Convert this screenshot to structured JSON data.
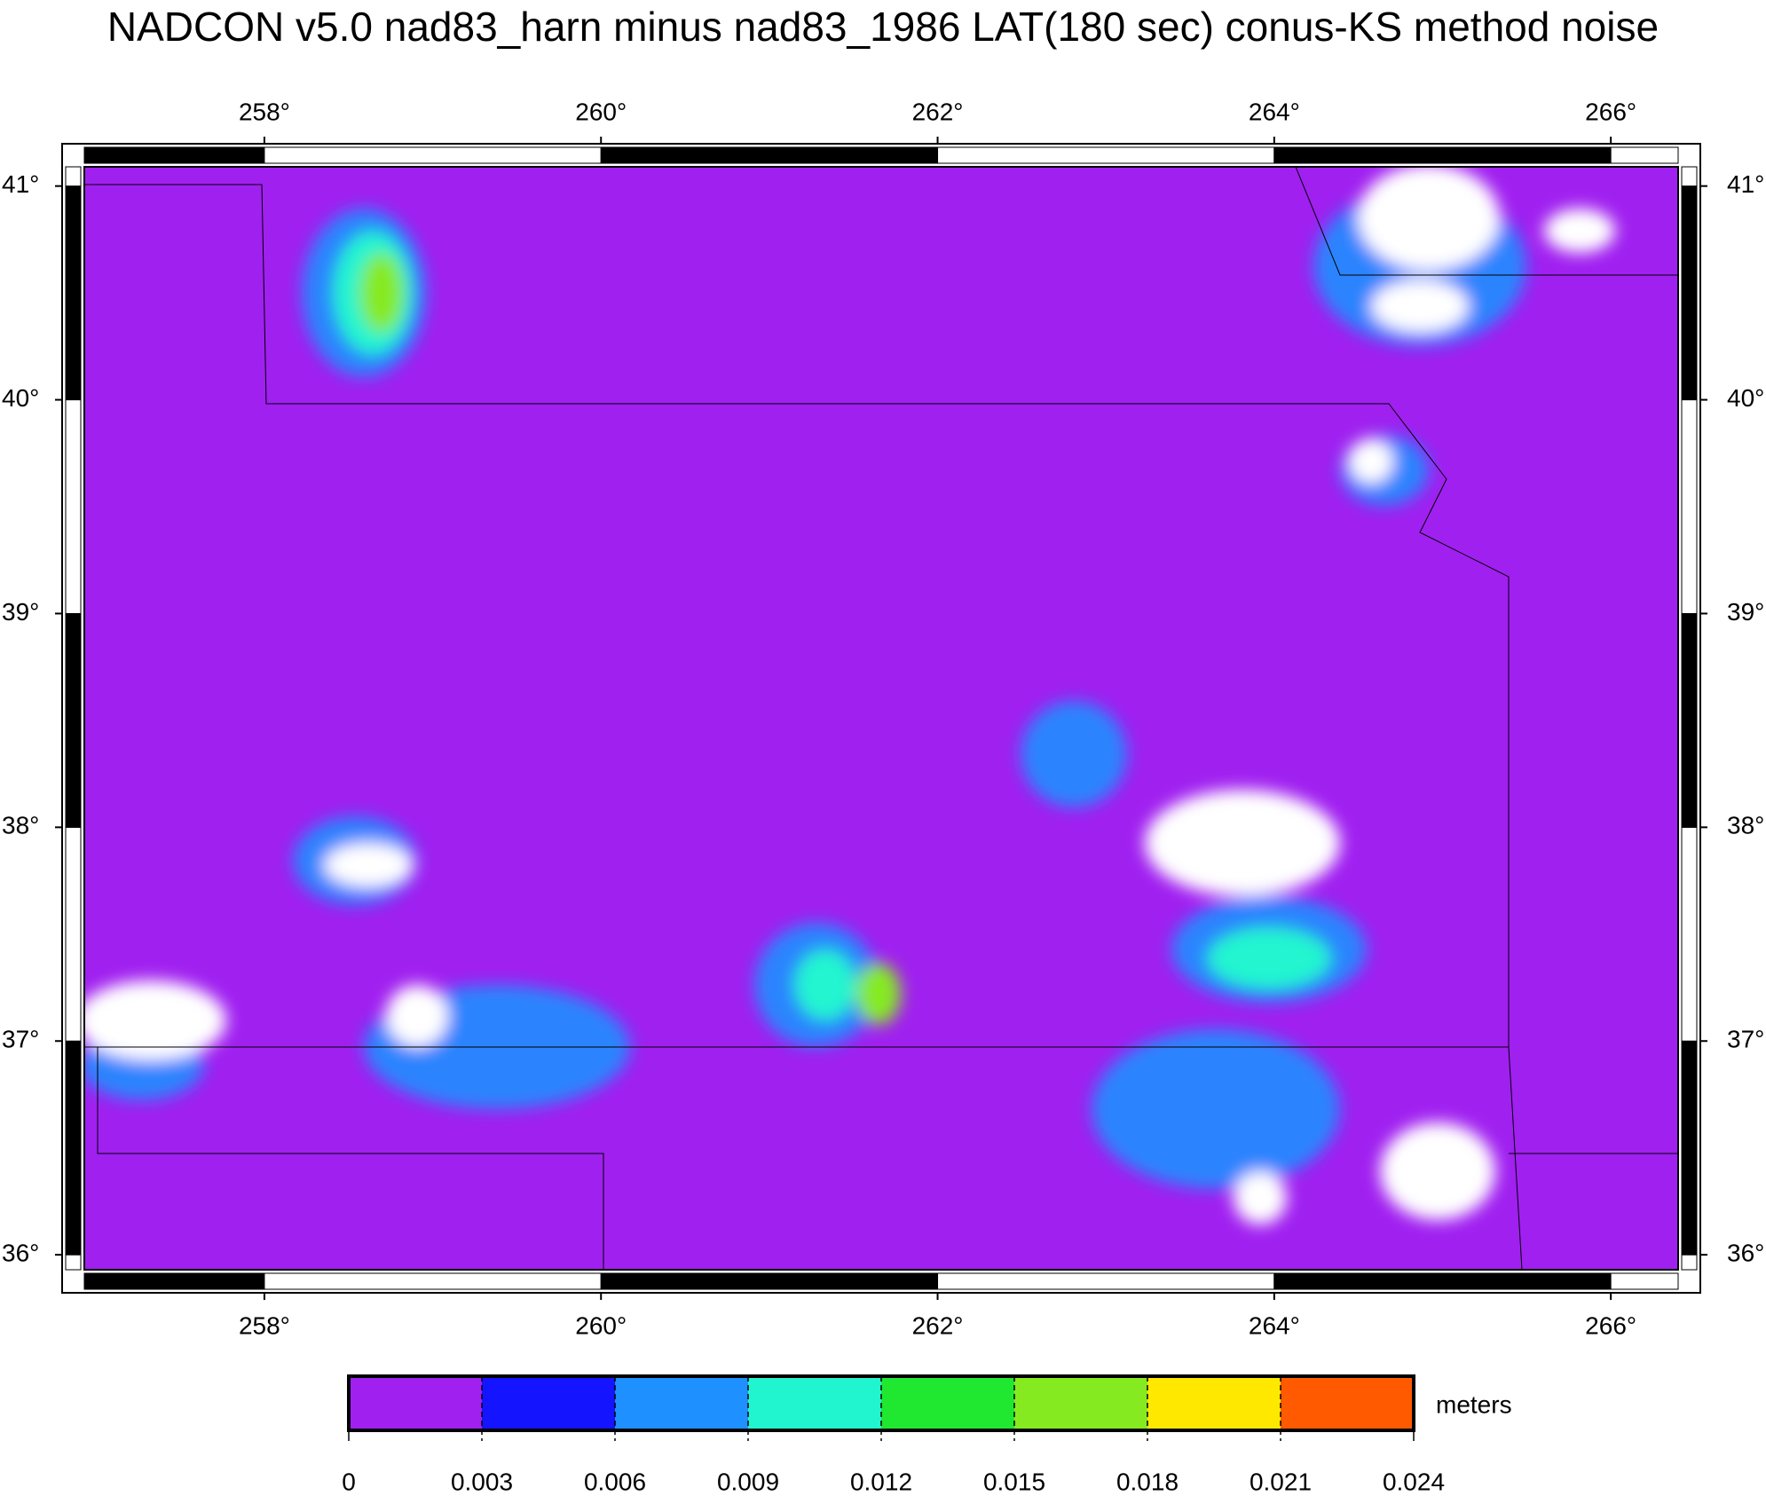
{
  "chart_data": {
    "type": "map",
    "title": "NADCON v5.0 nad83_harn minus nad83_1986 LAT(180 sec) conus-KS method noise",
    "xlim": [
      256.93,
      266.4
    ],
    "ylim": [
      35.93,
      41.09
    ],
    "xticks": [
      {
        "value": 258,
        "label": "258°"
      },
      {
        "value": 260,
        "label": "260°"
      },
      {
        "value": 262,
        "label": "262°"
      },
      {
        "value": 264,
        "label": "264°"
      },
      {
        "value": 266,
        "label": "266°"
      }
    ],
    "yticks": [
      {
        "value": 36,
        "label": "36°"
      },
      {
        "value": 37,
        "label": "37°"
      },
      {
        "value": 38,
        "label": "38°"
      },
      {
        "value": 39,
        "label": "39°"
      },
      {
        "value": 40,
        "label": "40°"
      },
      {
        "value": 41,
        "label": "41°"
      }
    ],
    "background_color": "#a020f0",
    "colorbar": {
      "label": "meters",
      "ticks": [
        0,
        0.003,
        0.006,
        0.009,
        0.012,
        0.015,
        0.018,
        0.021,
        0.024
      ],
      "colors": [
        "#a020f0",
        "#1414ff",
        "#1e90ff",
        "#20f5d0",
        "#20e830",
        "#86ea20",
        "#ffe800",
        "#ff5a00"
      ]
    }
  }
}
